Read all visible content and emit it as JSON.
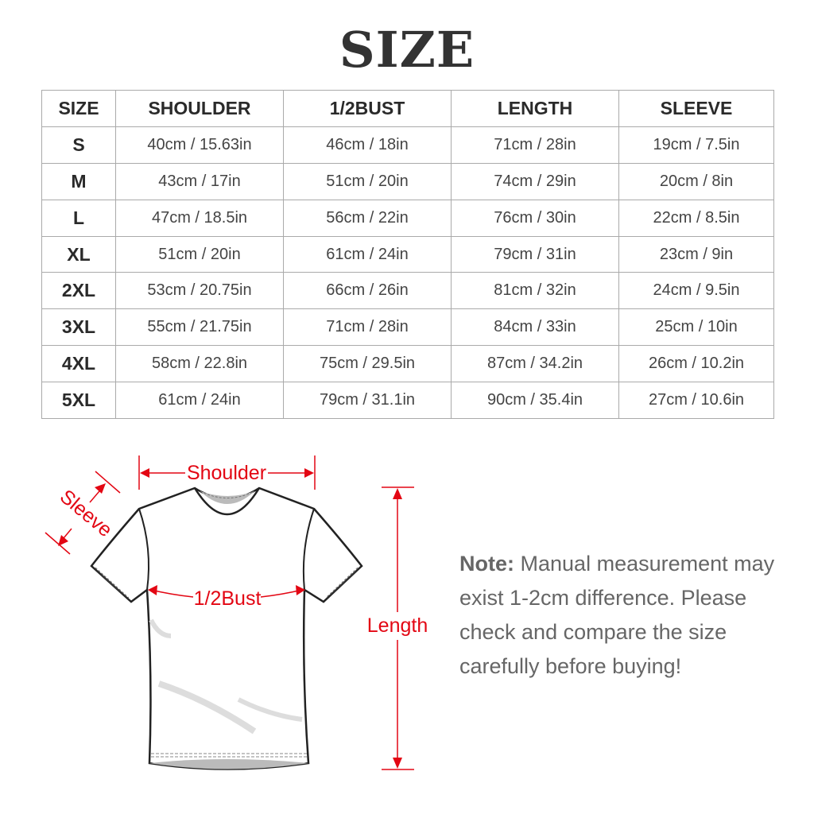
{
  "title": "SIZE",
  "table": {
    "headers": [
      "SIZE",
      "SHOULDER",
      "1/2BUST",
      "LENGTH",
      "SLEEVE"
    ],
    "rows": [
      [
        "S",
        "40cm / 15.63in",
        "46cm / 18in",
        "71cm / 28in",
        "19cm / 7.5in"
      ],
      [
        "M",
        "43cm / 17in",
        "51cm / 20in",
        "74cm / 29in",
        "20cm / 8in"
      ],
      [
        "L",
        "47cm / 18.5in",
        "56cm / 22in",
        "76cm / 30in",
        "22cm / 8.5in"
      ],
      [
        "XL",
        "51cm / 20in",
        "61cm / 24in",
        "79cm / 31in",
        "23cm / 9in"
      ],
      [
        "2XL",
        "53cm / 20.75in",
        "66cm / 26in",
        "81cm / 32in",
        "24cm / 9.5in"
      ],
      [
        "3XL",
        "55cm / 21.75in",
        "71cm / 28in",
        "84cm / 33in",
        "25cm / 10in"
      ],
      [
        "4XL",
        "58cm / 22.8in",
        "75cm / 29.5in",
        "87cm / 34.2in",
        "26cm / 10.2in"
      ],
      [
        "5XL",
        "61cm / 24in",
        "79cm / 31.1in",
        "90cm / 35.4in",
        "27cm / 10.6in"
      ]
    ]
  },
  "diagram": {
    "labels": {
      "shoulder": "Shoulder",
      "sleeve": "Sleeve",
      "bust": "1/2Bust",
      "length": "Length"
    },
    "accent_color": "#e30613"
  },
  "note": {
    "label": "Note:",
    "text": "Manual measurement may exist 1-2cm difference. Please check and compare the size carefully before buying!"
  }
}
